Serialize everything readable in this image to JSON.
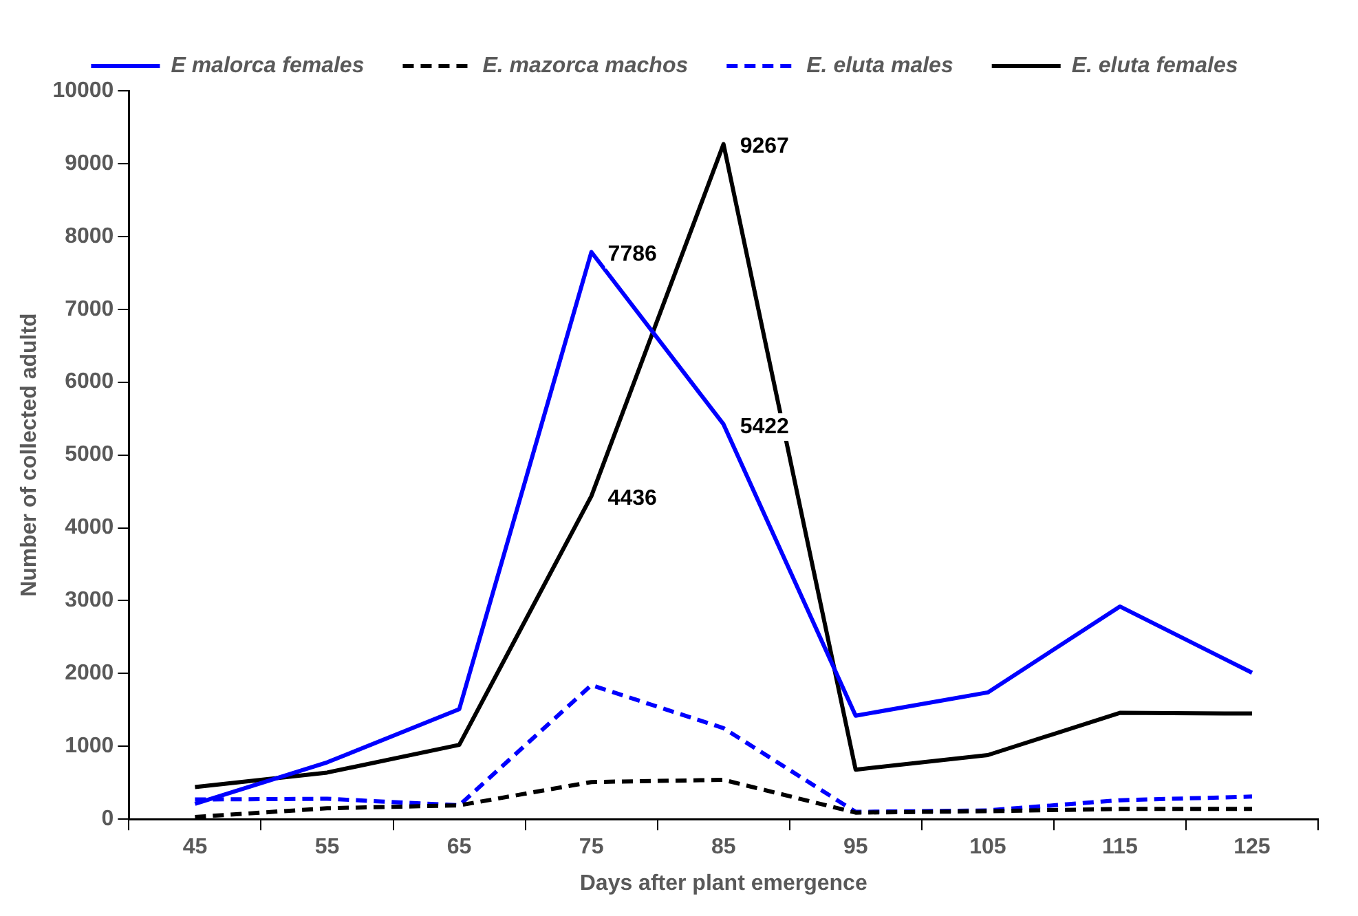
{
  "chart_data": {
    "type": "line",
    "xlabel": "Days after plant emergence",
    "ylabel": "Number of collected adultd",
    "categories": [
      "45",
      "55",
      "65",
      "75",
      "85",
      "95",
      "105",
      "115",
      "125"
    ],
    "ylim": [
      0,
      10000
    ],
    "yticks": [
      0,
      1000,
      2000,
      3000,
      4000,
      5000,
      6000,
      7000,
      8000,
      9000,
      10000
    ],
    "grid": false,
    "legend": "top",
    "marker": "none",
    "series": [
      {
        "name": "E malorca females",
        "color": "#0000ff",
        "line_style": "solid",
        "values": [
          210,
          780,
          1510,
          7786,
          5422,
          1420,
          1740,
          2920,
          2010
        ],
        "value_labels": [
          null,
          null,
          null,
          "7786",
          "5422",
          null,
          null,
          null,
          null
        ]
      },
      {
        "name": "E. mazorca machos",
        "color": "#000000",
        "line_style": "dashed",
        "values": [
          30,
          150,
          190,
          510,
          540,
          90,
          110,
          140,
          140
        ]
      },
      {
        "name": "E. eluta males",
        "color": "#0000ff",
        "line_style": "dashed",
        "values": [
          270,
          280,
          190,
          1840,
          1250,
          100,
          120,
          260,
          310
        ]
      },
      {
        "name": "E. eluta females",
        "color": "#000000",
        "line_style": "solid",
        "values": [
          440,
          640,
          1020,
          4436,
          9267,
          680,
          880,
          1460,
          1450
        ],
        "value_labels": [
          null,
          null,
          null,
          "4436",
          "9267",
          null,
          null,
          null,
          null
        ]
      }
    ]
  }
}
